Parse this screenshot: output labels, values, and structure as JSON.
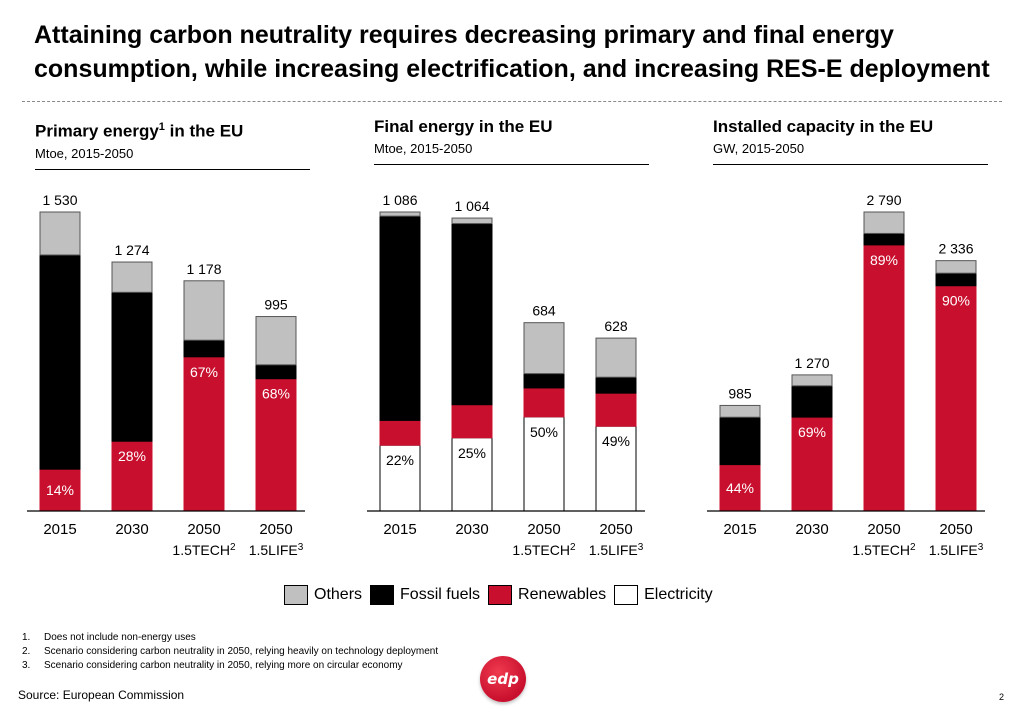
{
  "title": "Attaining carbon neutrality requires decreasing primary and final energy consumption, while increasing electrification, and increasing RES-E deployment",
  "colors": {
    "others": "#c0c0c0",
    "fossil": "#000000",
    "renewables": "#c8102e",
    "electricity": "#ffffff"
  },
  "legend": [
    {
      "key": "others",
      "label": "Others"
    },
    {
      "key": "fossil",
      "label": "Fossil fuels"
    },
    {
      "key": "renewables",
      "label": "Renewables"
    },
    {
      "key": "electricity",
      "label": "Electricity"
    }
  ],
  "chart_data": [
    {
      "type": "bar",
      "stacked": true,
      "title": "Primary energy",
      "title_sup": "1",
      "title_suffix": " in the EU",
      "subtitle": "Mtoe, 2015-2050",
      "categories": [
        {
          "label": "2015",
          "sub": "",
          "sup": ""
        },
        {
          "label": "2030",
          "sub": "",
          "sup": ""
        },
        {
          "label": "2050",
          "sub": "1.5TECH",
          "sup": "2"
        },
        {
          "label": "2050",
          "sub": "1.5LIFE",
          "sup": "3"
        }
      ],
      "totals": [
        1530,
        1274,
        1178,
        995
      ],
      "total_labels": [
        "1 530",
        "1 274",
        "1 178",
        "995"
      ],
      "ylim": [
        0,
        1530
      ],
      "series": [
        {
          "name": "Renewables",
          "key": "renewables",
          "values": [
            214,
            357,
            789,
            677
          ],
          "labels": [
            "14%",
            "28%",
            "67%",
            "68%"
          ]
        },
        {
          "name": "Fossil fuels",
          "key": "fossil",
          "values": [
            1096,
            762,
            85,
            71
          ],
          "labels": [
            "",
            "",
            "",
            ""
          ]
        },
        {
          "name": "Others",
          "key": "others",
          "values": [
            220,
            155,
            304,
            247
          ],
          "labels": [
            "",
            "",
            "",
            ""
          ]
        }
      ]
    },
    {
      "type": "bar",
      "stacked": true,
      "title": "Final energy in the EU",
      "title_sup": "",
      "title_suffix": "",
      "subtitle": "Mtoe, 2015-2050",
      "categories": [
        {
          "label": "2015",
          "sub": "",
          "sup": ""
        },
        {
          "label": "2030",
          "sub": "",
          "sup": ""
        },
        {
          "label": "2050",
          "sub": "1.5TECH",
          "sup": "2"
        },
        {
          "label": "2050",
          "sub": "1.5LIFE",
          "sup": "3"
        }
      ],
      "totals": [
        1086,
        1064,
        684,
        628
      ],
      "total_labels": [
        "1 086",
        "1 064",
        "684",
        "628"
      ],
      "ylim": [
        0,
        1086
      ],
      "series": [
        {
          "name": "Electricity",
          "key": "electricity",
          "values": [
            239,
            266,
            342,
            308
          ],
          "labels": [
            "22%",
            "25%",
            "50%",
            "49%"
          ]
        },
        {
          "name": "Renewables",
          "key": "renewables",
          "values": [
            90,
            120,
            105,
            120
          ],
          "labels": [
            "",
            "",
            "",
            ""
          ]
        },
        {
          "name": "Fossil fuels",
          "key": "fossil",
          "values": [
            742,
            658,
            52,
            58
          ],
          "labels": [
            "",
            "",
            "",
            ""
          ]
        },
        {
          "name": "Others",
          "key": "others",
          "values": [
            15,
            20,
            185,
            142
          ],
          "labels": [
            "",
            "",
            "",
            ""
          ]
        }
      ]
    },
    {
      "type": "bar",
      "stacked": true,
      "title": "Installed capacity in the EU",
      "title_sup": "",
      "title_suffix": "",
      "subtitle": "GW, 2015-2050",
      "categories": [
        {
          "label": "2015",
          "sub": "",
          "sup": ""
        },
        {
          "label": "2030",
          "sub": "",
          "sup": ""
        },
        {
          "label": "2050",
          "sub": "1.5TECH",
          "sup": "2"
        },
        {
          "label": "2050",
          "sub": "1.5LIFE",
          "sup": "3"
        }
      ],
      "totals": [
        985,
        1270,
        2790,
        2336
      ],
      "total_labels": [
        "985",
        "1 270",
        "2 790",
        "2 336"
      ],
      "ylim": [
        0,
        2790
      ],
      "series": [
        {
          "name": "Renewables",
          "key": "renewables",
          "values": [
            433,
            876,
            2483,
            2102
          ],
          "labels": [
            "44%",
            "69%",
            "89%",
            "90%"
          ]
        },
        {
          "name": "Fossil fuels",
          "key": "fossil",
          "values": [
            442,
            292,
            107,
            117
          ],
          "labels": [
            "",
            "",
            "",
            ""
          ]
        },
        {
          "name": "Others",
          "key": "others",
          "values": [
            110,
            102,
            200,
            117
          ],
          "labels": [
            "",
            "",
            "",
            ""
          ]
        }
      ]
    }
  ],
  "footnotes": [
    {
      "num": "1.",
      "text": "Does not include non-energy uses"
    },
    {
      "num": "2.",
      "text": "Scenario considering carbon neutrality in 2050, relying heavily on technology deployment"
    },
    {
      "num": "3.",
      "text": "Scenario considering carbon neutrality in 2050, relying more on circular economy"
    }
  ],
  "source": "Source: European Commission",
  "logo_text": "edp",
  "page_number": "2"
}
